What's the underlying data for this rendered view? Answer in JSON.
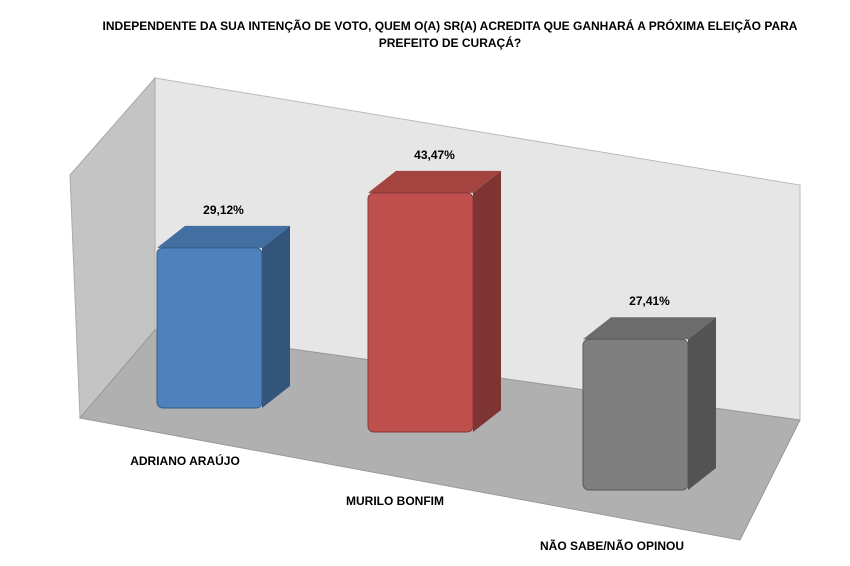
{
  "chart_data": {
    "type": "bar3d",
    "title": "INDEPENDENTE DA SUA INTENÇÃO DE VOTO, QUEM O(A) SR(A) ACREDITA QUE GANHARÁ A PRÓXIMA ELEIÇÃO PARA PREFEITO DE CURAÇÁ?",
    "categories": [
      "ADRIANO ARAÚJO",
      "MURILO BONFIM",
      "NÃO SABE/NÃO OPINOU"
    ],
    "values": [
      29.12,
      43.47,
      27.41
    ],
    "value_labels": [
      "29,12%",
      "43,47%",
      "27,41%"
    ],
    "colors": [
      "#4f81bd",
      "#c0504d",
      "#7f7f7f"
    ]
  }
}
